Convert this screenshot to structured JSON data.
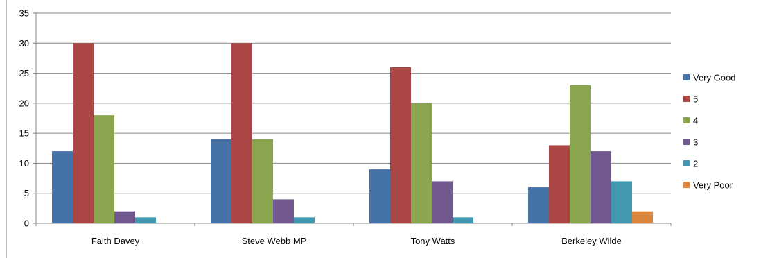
{
  "chart_data": {
    "type": "bar",
    "title": "",
    "xlabel": "",
    "ylabel": "",
    "ylim": [
      0,
      35
    ],
    "yticks": [
      0,
      5,
      10,
      15,
      20,
      25,
      30,
      35
    ],
    "grid": true,
    "legend_position": "right",
    "categories": [
      "Faith Davey",
      "Steve Webb MP",
      "Tony Watts",
      "Berkeley Wilde"
    ],
    "series": [
      {
        "name": "Very Good",
        "color": "#4572a7",
        "values": [
          12,
          14,
          9,
          6
        ]
      },
      {
        "name": "5",
        "color": "#aa4643",
        "values": [
          30,
          30,
          26,
          13
        ]
      },
      {
        "name": "4",
        "color": "#89a54e",
        "values": [
          18,
          14,
          20,
          23
        ]
      },
      {
        "name": "3",
        "color": "#71588f",
        "values": [
          2,
          4,
          7,
          12
        ]
      },
      {
        "name": "2",
        "color": "#4198af",
        "values": [
          1,
          1,
          1,
          7
        ]
      },
      {
        "name": "Very Poor",
        "color": "#db843d",
        "values": [
          0,
          0,
          0,
          2
        ]
      }
    ]
  }
}
